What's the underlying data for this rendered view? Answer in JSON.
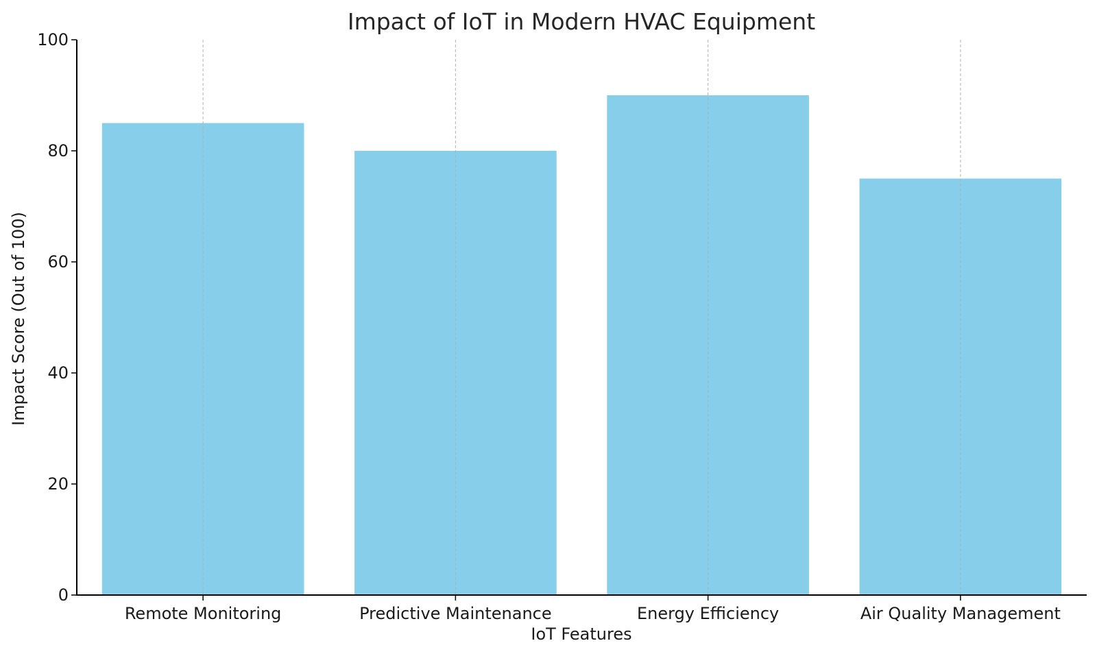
{
  "chart_data": {
    "type": "bar",
    "title": "Impact of IoT in Modern HVAC Equipment",
    "xlabel": "IoT Features",
    "ylabel": "Impact Score (Out of 100)",
    "categories": [
      "Remote Monitoring",
      "Predictive Maintenance",
      "Energy Efficiency",
      "Air Quality Management"
    ],
    "values": [
      85,
      80,
      90,
      75
    ],
    "ylim": [
      0,
      100
    ],
    "yticks": [
      0,
      20,
      40,
      60,
      80,
      100
    ],
    "ytick_labels": [
      "0",
      "20",
      "40",
      "60",
      "80",
      "100"
    ],
    "bar_color": "#87ceeb",
    "grid": "x-axis dashed vertical lines",
    "legend": "none"
  }
}
